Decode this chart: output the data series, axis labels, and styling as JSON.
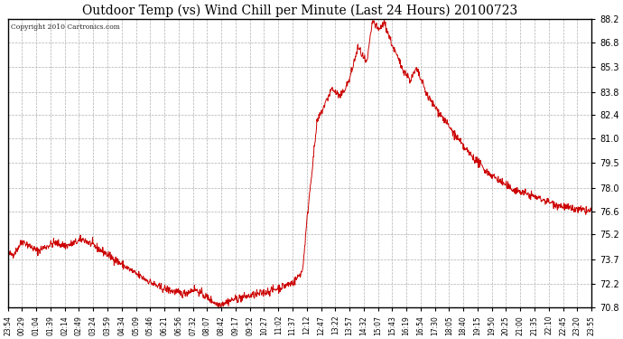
{
  "title": "Outdoor Temp (vs) Wind Chill per Minute (Last 24 Hours) 20100723",
  "copyright": "Copyright 2010 Cartronics.com",
  "line_color": "#cc0000",
  "background_color": "#ffffff",
  "plot_bg_color": "#ffffff",
  "grid_color": "#b0b0b0",
  "ylim": [
    70.8,
    88.2
  ],
  "yticks": [
    70.8,
    72.2,
    73.7,
    75.2,
    76.6,
    78.0,
    79.5,
    81.0,
    82.4,
    83.8,
    85.3,
    86.8,
    88.2
  ],
  "xtick_labels": [
    "23:54",
    "00:29",
    "01:04",
    "01:39",
    "02:14",
    "02:49",
    "03:24",
    "03:59",
    "04:34",
    "05:09",
    "05:46",
    "06:21",
    "06:56",
    "07:32",
    "08:07",
    "08:42",
    "09:17",
    "09:52",
    "10:27",
    "11:02",
    "11:37",
    "12:12",
    "12:47",
    "13:22",
    "13:57",
    "14:32",
    "15:07",
    "15:43",
    "16:19",
    "16:54",
    "17:30",
    "18:05",
    "18:40",
    "19:15",
    "19:50",
    "20:25",
    "21:00",
    "21:35",
    "22:10",
    "22:45",
    "23:20",
    "23:55"
  ],
  "n_points": 1440,
  "figsize": [
    6.9,
    3.75
  ],
  "dpi": 100
}
